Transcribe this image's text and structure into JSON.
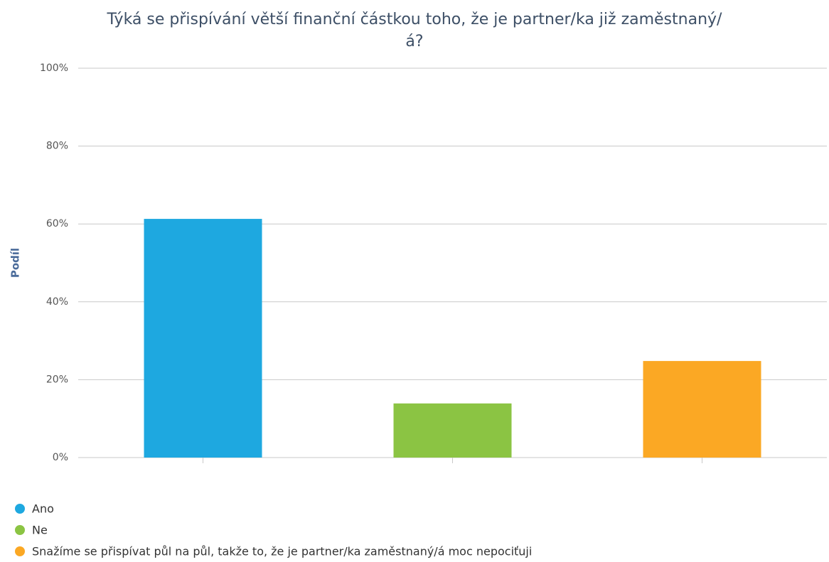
{
  "chart_data": {
    "type": "bar",
    "title": "Týká se přispívání větší finanční částkou toho, že je partner/ka již zaměstnaný/á?",
    "y_label": "Podíl",
    "series": [
      {
        "name": "Ano",
        "color": "#1ea8e0",
        "values": [
          61.3
        ]
      },
      {
        "name": "Ne",
        "color": "#8bc443",
        "values": [
          13.9
        ]
      },
      {
        "name": "Snažíme se přispívat půl na půl, takže to, že je partner/ka zaměstnaný/á moc nepociťuji",
        "color": "#fba824",
        "values": [
          24.8
        ]
      }
    ],
    "ylim": [
      0,
      100
    ],
    "yticks": [
      {
        "value": 0,
        "label": "0%"
      },
      {
        "value": 20,
        "label": "20%"
      },
      {
        "value": 40,
        "label": "40%"
      },
      {
        "value": 60,
        "label": "60%"
      },
      {
        "value": 80,
        "label": "80%"
      },
      {
        "value": 100,
        "label": "100%"
      }
    ],
    "grid": true,
    "legend": "bottom-left"
  }
}
